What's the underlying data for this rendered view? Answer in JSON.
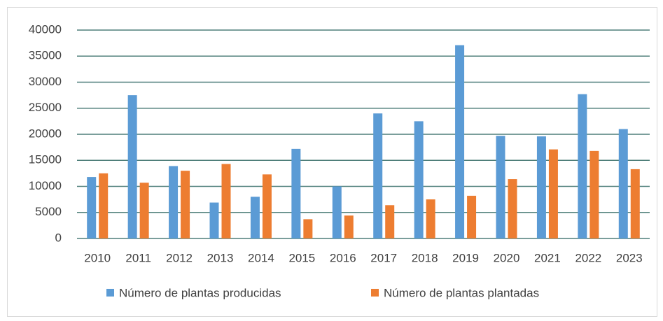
{
  "chart_data": {
    "type": "bar",
    "categories": [
      "2010",
      "2011",
      "2012",
      "2013",
      "2014",
      "2015",
      "2016",
      "2017",
      "2018",
      "2019",
      "2020",
      "2021",
      "2022",
      "2023"
    ],
    "series": [
      {
        "name": "Número de plantas producidas",
        "color": "#5b9bd5",
        "values": [
          11800,
          27500,
          13900,
          6900,
          8000,
          17200,
          10000,
          24000,
          22500,
          37100,
          19700,
          19600,
          27700,
          21000
        ]
      },
      {
        "name": "Número de plantas plantadas",
        "color": "#ed7d31",
        "values": [
          12500,
          10700,
          13000,
          14300,
          12300,
          3700,
          4400,
          6400,
          7500,
          8200,
          11400,
          17100,
          16800,
          13300
        ]
      }
    ],
    "ylim": [
      0,
      40000
    ],
    "yticks": [
      0,
      5000,
      10000,
      15000,
      20000,
      25000,
      30000,
      35000,
      40000
    ],
    "grid": true,
    "legend": "bottom"
  }
}
